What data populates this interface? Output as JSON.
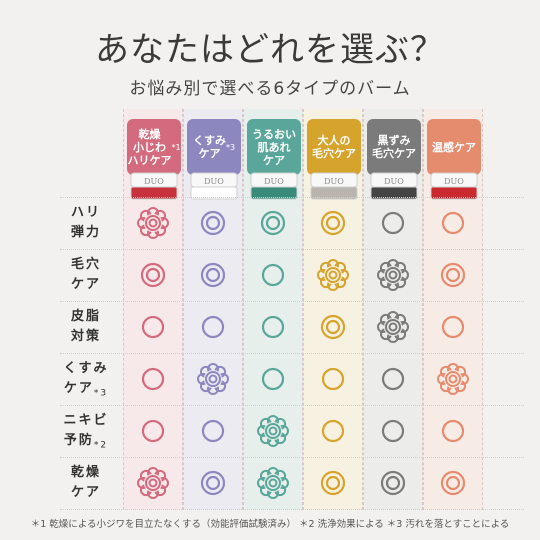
{
  "header": {
    "title": "あなたはどれを選ぶ？",
    "subtitle": "お悩み別で選べる6タイプのバーム"
  },
  "products": [
    {
      "label_lines": [
        "乾燥",
        "小じわ",
        "ハリケア"
      ],
      "note_mark": "*1",
      "jar_text": "DUO",
      "color": "#d36a7d",
      "bg": "#f7e9ea",
      "jar_color": "#c7323c"
    },
    {
      "label_lines": [
        "くすみ",
        "ケア"
      ],
      "note_mark": "*3",
      "jar_text": "DUO",
      "color": "#8d87bf",
      "bg": "#ecebf2",
      "jar_color": "#ffffff"
    },
    {
      "label_lines": [
        "うるおい",
        "肌あれ",
        "ケア"
      ],
      "note_mark": "",
      "jar_text": "DUO",
      "color": "#5aa69a",
      "bg": "#e7efec",
      "jar_color": "#3a8a7a"
    },
    {
      "label_lines": [
        "大人の",
        "毛穴ケア"
      ],
      "note_mark": "",
      "jar_text": "DUO",
      "color": "#d6a42c",
      "bg": "#f7f1e2",
      "jar_color": "#b9b4ad"
    },
    {
      "label_lines": [
        "黒ずみ",
        "毛穴ケア"
      ],
      "note_mark": "",
      "jar_text": "DUO",
      "color": "#7b7b7b",
      "bg": "#ececeb",
      "jar_color": "#444444"
    },
    {
      "label_lines": [
        "温感ケア"
      ],
      "note_mark": "",
      "jar_text": "DUO",
      "color": "#e58b6e",
      "bg": "#f7ebe6",
      "jar_color": "#c9292f"
    }
  ],
  "rows": [
    {
      "label_lines": [
        "ハリ",
        "弾力"
      ],
      "note_mark": "",
      "marks": [
        "flower",
        "double",
        "double",
        "double",
        "single",
        "single"
      ]
    },
    {
      "label_lines": [
        "毛穴",
        "ケア"
      ],
      "note_mark": "",
      "marks": [
        "double",
        "double",
        "single",
        "flower",
        "flower",
        "double"
      ]
    },
    {
      "label_lines": [
        "皮脂",
        "対策"
      ],
      "note_mark": "",
      "marks": [
        "single",
        "single",
        "single",
        "double",
        "flower",
        "single"
      ]
    },
    {
      "label_lines": [
        "くすみ",
        "ケア"
      ],
      "note_mark": "*3",
      "marks": [
        "single",
        "flower",
        "single",
        "single",
        "single",
        "flower"
      ]
    },
    {
      "label_lines": [
        "ニキビ",
        "予防"
      ],
      "note_mark": "*2",
      "marks": [
        "single",
        "single",
        "flower",
        "single",
        "single",
        "single"
      ]
    },
    {
      "label_lines": [
        "乾燥",
        "ケア"
      ],
      "note_mark": "",
      "marks": [
        "flower",
        "double",
        "flower",
        "double",
        "double",
        "double"
      ]
    }
  ],
  "footnote": "＊1 乾燥による小ジワを目立たなくする（効能評価試験済み） ＊2 洗浄効果による ＊3 汚れを落とすことによる"
}
